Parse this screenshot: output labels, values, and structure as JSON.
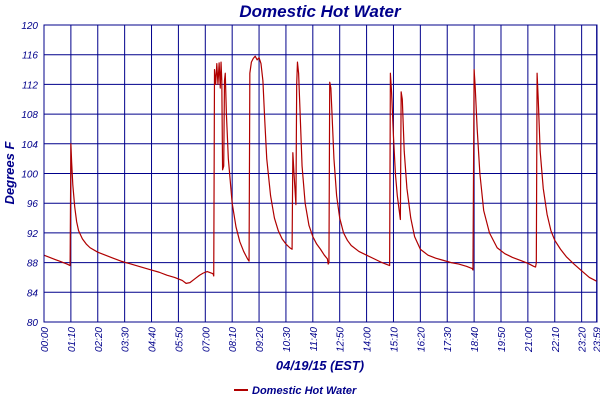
{
  "chart_data": {
    "type": "line",
    "title": "Domestic Hot Water",
    "xlabel": "04/19/15 (EST)",
    "ylabel": "Degrees F",
    "ylim": [
      80,
      120
    ],
    "yticks": [
      "80",
      "84",
      "88",
      "92",
      "96",
      "100",
      "104",
      "108",
      "112",
      "116",
      "120"
    ],
    "xlim": [
      0,
      1440
    ],
    "xticks": [
      {
        "label": "00:00",
        "minute": 0
      },
      {
        "label": "01:10",
        "minute": 70
      },
      {
        "label": "02:20",
        "minute": 140
      },
      {
        "label": "03:30",
        "minute": 210
      },
      {
        "label": "04:40",
        "minute": 280
      },
      {
        "label": "05:50",
        "minute": 350
      },
      {
        "label": "07:00",
        "minute": 420
      },
      {
        "label": "08:10",
        "minute": 490
      },
      {
        "label": "09:20",
        "minute": 560
      },
      {
        "label": "10:30",
        "minute": 630
      },
      {
        "label": "11:40",
        "minute": 700
      },
      {
        "label": "12:50",
        "minute": 770
      },
      {
        "label": "14:00",
        "minute": 840
      },
      {
        "label": "15:10",
        "minute": 910
      },
      {
        "label": "16:20",
        "minute": 980
      },
      {
        "label": "17:30",
        "minute": 1050
      },
      {
        "label": "18:40",
        "minute": 1120
      },
      {
        "label": "19:50",
        "minute": 1190
      },
      {
        "label": "21:00",
        "minute": 1260
      },
      {
        "label": "22:10",
        "minute": 1330
      },
      {
        "label": "23:20",
        "minute": 1400
      },
      {
        "label": "23:59",
        "minute": 1439
      }
    ],
    "grid": true,
    "legend_position": "bottom-center",
    "series": [
      {
        "name": "Domestic Hot Water",
        "color": "#B00000",
        "points": [
          [
            0,
            89.0
          ],
          [
            10,
            88.8
          ],
          [
            20,
            88.6
          ],
          [
            30,
            88.4
          ],
          [
            40,
            88.2
          ],
          [
            50,
            88.0
          ],
          [
            60,
            87.8
          ],
          [
            68,
            87.6
          ],
          [
            70,
            104.0
          ],
          [
            72,
            101.5
          ],
          [
            75,
            98.5
          ],
          [
            80,
            95.5
          ],
          [
            85,
            93.5
          ],
          [
            90,
            92.3
          ],
          [
            100,
            91.2
          ],
          [
            110,
            90.5
          ],
          [
            120,
            90.0
          ],
          [
            140,
            89.4
          ],
          [
            160,
            89.0
          ],
          [
            180,
            88.6
          ],
          [
            200,
            88.2
          ],
          [
            220,
            87.9
          ],
          [
            240,
            87.6
          ],
          [
            260,
            87.3
          ],
          [
            280,
            87.0
          ],
          [
            300,
            86.7
          ],
          [
            320,
            86.3
          ],
          [
            340,
            86.0
          ],
          [
            360,
            85.6
          ],
          [
            370,
            85.2
          ],
          [
            380,
            85.3
          ],
          [
            395,
            85.9
          ],
          [
            405,
            86.3
          ],
          [
            415,
            86.6
          ],
          [
            425,
            86.8
          ],
          [
            440,
            86.5
          ],
          [
            442,
            86.2
          ],
          [
            444,
            114.0
          ],
          [
            447,
            112.0
          ],
          [
            450,
            114.8
          ],
          [
            453,
            112.0
          ],
          [
            456,
            114.9
          ],
          [
            459,
            111.5
          ],
          [
            461,
            115.0
          ],
          [
            463,
            112.5
          ],
          [
            465,
            100.5
          ],
          [
            468,
            101.0
          ],
          [
            470,
            112.5
          ],
          [
            472,
            113.5
          ],
          [
            475,
            108.0
          ],
          [
            480,
            102.0
          ],
          [
            490,
            96.0
          ],
          [
            500,
            92.8
          ],
          [
            510,
            90.8
          ],
          [
            520,
            89.5
          ],
          [
            530,
            88.5
          ],
          [
            534,
            88.2
          ],
          [
            536,
            113.5
          ],
          [
            540,
            115.0
          ],
          [
            545,
            115.5
          ],
          [
            550,
            115.8
          ],
          [
            555,
            115.3
          ],
          [
            560,
            115.6
          ],
          [
            565,
            114.8
          ],
          [
            570,
            112.5
          ],
          [
            575,
            107.0
          ],
          [
            580,
            102.0
          ],
          [
            590,
            97.0
          ],
          [
            600,
            94.0
          ],
          [
            610,
            92.3
          ],
          [
            620,
            91.2
          ],
          [
            630,
            90.5
          ],
          [
            640,
            90.0
          ],
          [
            646,
            89.8
          ],
          [
            648,
            102.8
          ],
          [
            651,
            100.0
          ],
          [
            654,
            97.5
          ],
          [
            656,
            95.8
          ],
          [
            658,
            112.0
          ],
          [
            660,
            115.0
          ],
          [
            663,
            113.5
          ],
          [
            667,
            108.0
          ],
          [
            672,
            101.0
          ],
          [
            680,
            96.0
          ],
          [
            690,
            93.0
          ],
          [
            700,
            91.5
          ],
          [
            710,
            90.5
          ],
          [
            720,
            89.8
          ],
          [
            730,
            89.0
          ],
          [
            738,
            88.5
          ],
          [
            740,
            87.8
          ],
          [
            742,
            88.0
          ],
          [
            744,
            112.3
          ],
          [
            747,
            111.5
          ],
          [
            750,
            108.0
          ],
          [
            755,
            102.0
          ],
          [
            762,
            97.0
          ],
          [
            770,
            94.0
          ],
          [
            780,
            92.0
          ],
          [
            790,
            91.0
          ],
          [
            800,
            90.3
          ],
          [
            820,
            89.5
          ],
          [
            840,
            89.0
          ],
          [
            860,
            88.5
          ],
          [
            880,
            88.0
          ],
          [
            890,
            87.8
          ],
          [
            900,
            87.6
          ],
          [
            902,
            113.5
          ],
          [
            905,
            111.0
          ],
          [
            910,
            105.0
          ],
          [
            915,
            100.0
          ],
          [
            920,
            97.0
          ],
          [
            925,
            95.0
          ],
          [
            928,
            93.8
          ],
          [
            930,
            111.0
          ],
          [
            933,
            110.0
          ],
          [
            938,
            103.0
          ],
          [
            945,
            98.0
          ],
          [
            955,
            94.0
          ],
          [
            965,
            91.5
          ],
          [
            980,
            89.8
          ],
          [
            1000,
            89.0
          ],
          [
            1020,
            88.6
          ],
          [
            1040,
            88.3
          ],
          [
            1060,
            88.0
          ],
          [
            1080,
            87.8
          ],
          [
            1100,
            87.5
          ],
          [
            1115,
            87.2
          ],
          [
            1117,
            87.0
          ],
          [
            1120,
            114.0
          ],
          [
            1123,
            111.5
          ],
          [
            1128,
            106.0
          ],
          [
            1135,
            100.0
          ],
          [
            1145,
            95.0
          ],
          [
            1160,
            92.0
          ],
          [
            1180,
            90.0
          ],
          [
            1200,
            89.2
          ],
          [
            1220,
            88.7
          ],
          [
            1240,
            88.3
          ],
          [
            1260,
            87.9
          ],
          [
            1275,
            87.5
          ],
          [
            1280,
            87.4
          ],
          [
            1282,
            88.0
          ],
          [
            1284,
            113.5
          ],
          [
            1287,
            110.0
          ],
          [
            1292,
            103.0
          ],
          [
            1300,
            98.0
          ],
          [
            1310,
            94.5
          ],
          [
            1320,
            92.3
          ],
          [
            1330,
            91.0
          ],
          [
            1345,
            89.8
          ],
          [
            1360,
            88.8
          ],
          [
            1380,
            87.8
          ],
          [
            1400,
            86.9
          ],
          [
            1420,
            86.0
          ],
          [
            1439,
            85.5
          ]
        ]
      }
    ]
  }
}
